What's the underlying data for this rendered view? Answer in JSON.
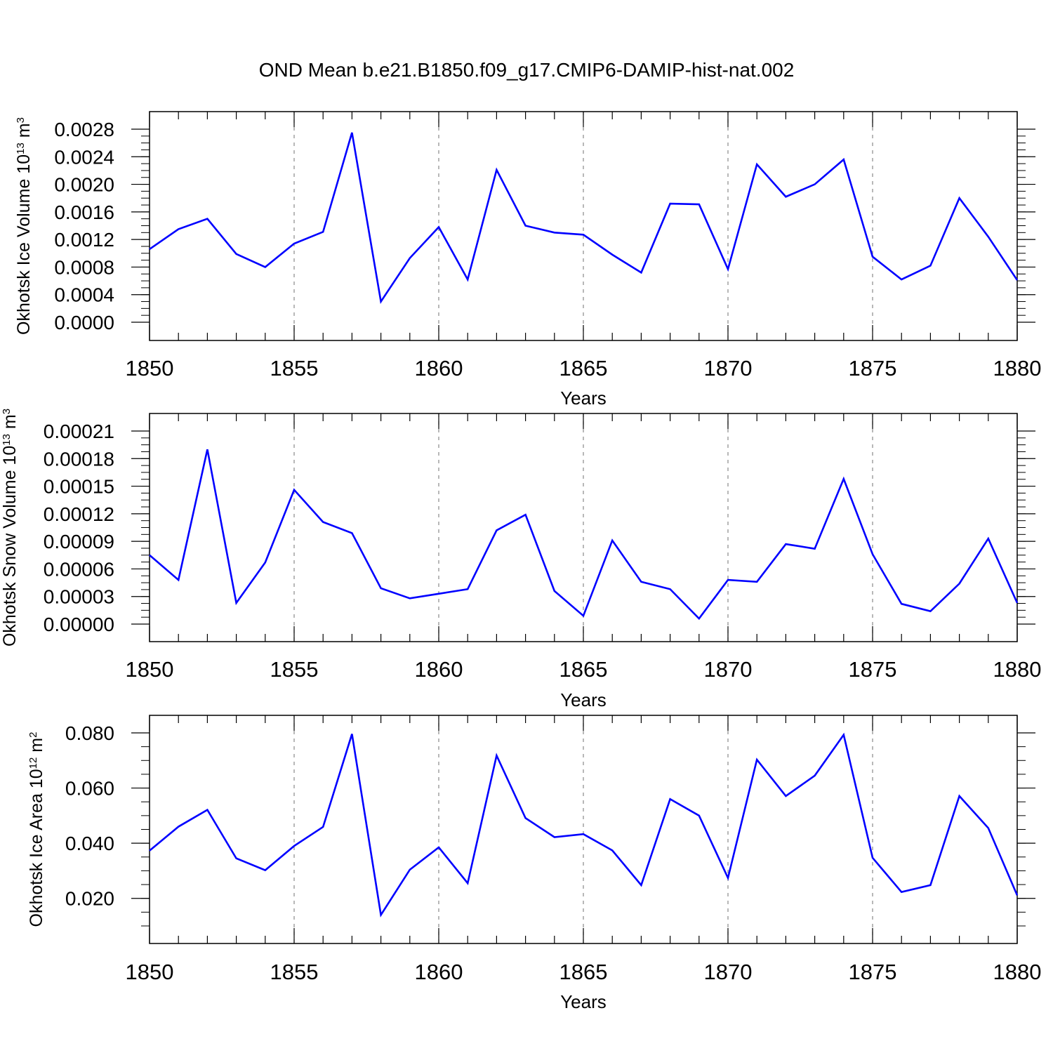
{
  "title": "OND Mean b.e21.B1850.f09_g17.CMIP6-DAMIP-hist-nat.002",
  "colors": {
    "line": "#0000ff",
    "axis": "#000000",
    "grid": "#888888"
  },
  "chart_data": [
    {
      "type": "line",
      "ylabel_main": "Okhotsk Ice Volume 10",
      "ylabel_exp": "13",
      "ylabel_unit": " m",
      "ylabel_unit_exp": "3",
      "xlabel": "Years",
      "xlim": [
        1850,
        1880
      ],
      "ylim": [
        0.0,
        0.0028
      ],
      "yticks": [
        "0.0000",
        "0.0004",
        "0.0008",
        "0.0012",
        "0.0016",
        "0.0020",
        "0.0024",
        "0.0028"
      ],
      "xticks": [
        "1850",
        "1855",
        "1860",
        "1865",
        "1870",
        "1875",
        "1880"
      ],
      "grid": "x-dashed",
      "series": [
        {
          "x": [
            1850,
            1851,
            1852,
            1853,
            1854,
            1855,
            1856,
            1857,
            1858,
            1859,
            1860,
            1861,
            1862,
            1863,
            1864,
            1865,
            1866,
            1867,
            1868,
            1869,
            1870,
            1871,
            1872,
            1873,
            1874,
            1875,
            1876,
            1877,
            1878,
            1879,
            1880
          ],
          "values": [
            0.00106,
            0.00135,
            0.0015,
            0.00099,
            0.0008,
            0.00114,
            0.00131,
            0.00275,
            0.0003,
            0.00093,
            0.00138,
            0.00062,
            0.00221,
            0.0014,
            0.0013,
            0.00127,
            0.00098,
            0.00072,
            0.00172,
            0.00171,
            0.00077,
            0.00229,
            0.00182,
            0.002,
            0.00236,
            0.00095,
            0.00062,
            0.00082,
            0.0018,
            0.00124,
            0.00061
          ]
        }
      ]
    },
    {
      "type": "line",
      "ylabel_main": "Okhotsk Snow Volume 10",
      "ylabel_exp": "13",
      "ylabel_unit": " m",
      "ylabel_unit_exp": "3",
      "xlabel": "Years",
      "xlim": [
        1850,
        1880
      ],
      "ylim": [
        0.0,
        0.00021
      ],
      "yticks": [
        "0.00000",
        "0.00003",
        "0.00006",
        "0.00009",
        "0.00012",
        "0.00015",
        "0.00018",
        "0.00021"
      ],
      "xticks": [
        "1850",
        "1855",
        "1860",
        "1865",
        "1870",
        "1875",
        "1880"
      ],
      "grid": "x-dashed",
      "series": [
        {
          "x": [
            1850,
            1851,
            1852,
            1853,
            1854,
            1855,
            1856,
            1857,
            1858,
            1859,
            1860,
            1861,
            1862,
            1863,
            1864,
            1865,
            1866,
            1867,
            1868,
            1869,
            1870,
            1871,
            1872,
            1873,
            1874,
            1875,
            1876,
            1877,
            1878,
            1879,
            1880
          ],
          "values": [
            7.5e-05,
            4.8e-05,
            0.00019,
            2.3e-05,
            6.7e-05,
            0.000146,
            0.000111,
            9.9e-05,
            3.9e-05,
            2.8e-05,
            3.3e-05,
            3.8e-05,
            0.000102,
            0.000119,
            3.6e-05,
            9e-06,
            9.1e-05,
            4.6e-05,
            3.8e-05,
            6e-06,
            4.8e-05,
            4.6e-05,
            8.7e-05,
            8.2e-05,
            0.000158,
            7.6e-05,
            2.2e-05,
            1.4e-05,
            4.4e-05,
            9.3e-05,
            2.3e-05
          ]
        }
      ]
    },
    {
      "type": "line",
      "ylabel_main": "Okhotsk Ice Area 10",
      "ylabel_exp": "12",
      "ylabel_unit": " m",
      "ylabel_unit_exp": "2",
      "xlabel": "Years",
      "xlim": [
        1850,
        1880
      ],
      "ylim": [
        0.01,
        0.08
      ],
      "yticks": [
        "0.020",
        "0.040",
        "0.060",
        "0.080"
      ],
      "ytick_values": [
        0.02,
        0.04,
        0.06,
        0.08
      ],
      "xticks": [
        "1850",
        "1855",
        "1860",
        "1865",
        "1870",
        "1875",
        "1880"
      ],
      "grid": "x-dashed",
      "series": [
        {
          "x": [
            1850,
            1851,
            1852,
            1853,
            1854,
            1855,
            1856,
            1857,
            1858,
            1859,
            1860,
            1861,
            1862,
            1863,
            1864,
            1865,
            1866,
            1867,
            1868,
            1869,
            1870,
            1871,
            1872,
            1873,
            1874,
            1875,
            1876,
            1877,
            1878,
            1879,
            1880
          ],
          "values": [
            0.0373,
            0.046,
            0.0521,
            0.0345,
            0.0302,
            0.039,
            0.0459,
            0.0796,
            0.014,
            0.0304,
            0.0385,
            0.0255,
            0.0718,
            0.0491,
            0.0422,
            0.0433,
            0.0374,
            0.0248,
            0.056,
            0.05,
            0.0274,
            0.0703,
            0.0571,
            0.0645,
            0.0793,
            0.0347,
            0.0223,
            0.0248,
            0.0571,
            0.0455,
            0.0211
          ]
        }
      ]
    }
  ]
}
